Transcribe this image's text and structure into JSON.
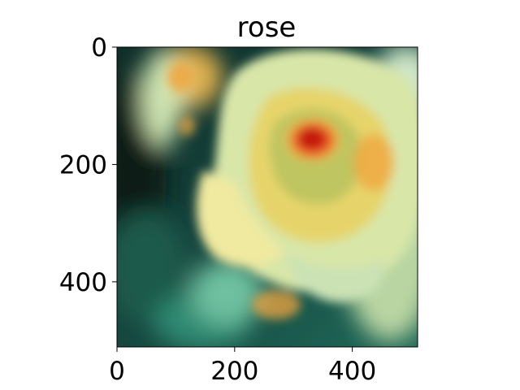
{
  "title": "rose",
  "image": {
    "subject": "rose-flower-photo",
    "palette": {
      "background_dark": "#0e2d27",
      "background_teal": "#1f6a5a",
      "petal_pale": "#cfe5b2",
      "petal_yellow": "#e6d46a",
      "center_red": "#e63a1a",
      "accent_orange": "#f0a640"
    }
  },
  "axes": {
    "xlim": [
      0,
      511
    ],
    "ylim": [
      511,
      0
    ],
    "x_ticks": [
      {
        "value": 0,
        "label": "0"
      },
      {
        "value": 200,
        "label": "200"
      },
      {
        "value": 400,
        "label": "400"
      }
    ],
    "y_ticks": [
      {
        "value": 0,
        "label": "0"
      },
      {
        "value": 200,
        "label": "200"
      },
      {
        "value": 400,
        "label": "400"
      }
    ]
  }
}
